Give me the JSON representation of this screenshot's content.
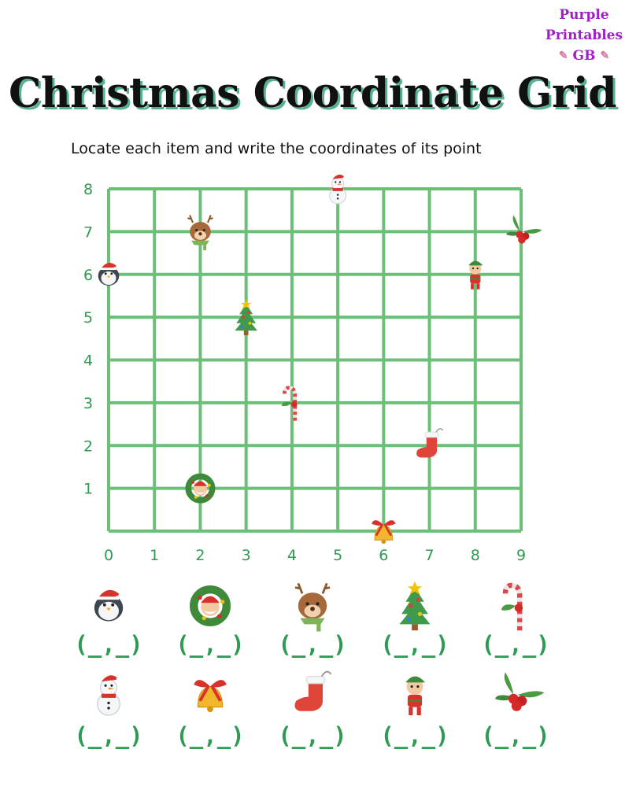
{
  "brand": {
    "line1": "Purple",
    "line2": "Printables",
    "line3": "GB"
  },
  "title": "Christmas Coordinate Grid",
  "subtitle": "Locate each item and write the coordinates of its point",
  "colors": {
    "grid": "#6cbf78",
    "axis_labels": "#2e9a52",
    "answer": "#2e9a52",
    "title_shadow": "#55b38f",
    "brand": "#a020c8"
  },
  "chart_data": {
    "type": "scatter",
    "x_ticks": [
      "0",
      "1",
      "2",
      "3",
      "4",
      "5",
      "6",
      "7",
      "8",
      "9"
    ],
    "y_ticks": [
      "1",
      "2",
      "3",
      "4",
      "5",
      "6",
      "7",
      "8"
    ],
    "xlim": [
      0,
      9
    ],
    "ylim": [
      0,
      8
    ],
    "grid": true,
    "points": [
      {
        "icon": "snowman-icon",
        "x": 5,
        "y": 8
      },
      {
        "icon": "reindeer-icon",
        "x": 2,
        "y": 7
      },
      {
        "icon": "holly-icon",
        "x": 9,
        "y": 7
      },
      {
        "icon": "penguin-icon",
        "x": 0,
        "y": 6
      },
      {
        "icon": "elf-icon",
        "x": 8,
        "y": 6
      },
      {
        "icon": "christmas-tree-icon",
        "x": 3,
        "y": 5
      },
      {
        "icon": "candy-cane-icon",
        "x": 4,
        "y": 3
      },
      {
        "icon": "stocking-icon",
        "x": 7,
        "y": 2
      },
      {
        "icon": "wreath-icon",
        "x": 2,
        "y": 1
      },
      {
        "icon": "bell-icon",
        "x": 6,
        "y": 0
      }
    ]
  },
  "answer_items": [
    {
      "icon": "penguin-icon",
      "blank": "(_,_)"
    },
    {
      "icon": "wreath-icon",
      "blank": "(_,_)"
    },
    {
      "icon": "reindeer-icon",
      "blank": "(_,_)"
    },
    {
      "icon": "christmas-tree-icon",
      "blank": "(_,_)"
    },
    {
      "icon": "candy-cane-icon",
      "blank": "(_,_)"
    },
    {
      "icon": "snowman-icon",
      "blank": "(_,_)"
    },
    {
      "icon": "bell-icon",
      "blank": "(_,_)"
    },
    {
      "icon": "stocking-icon",
      "blank": "(_,_)"
    },
    {
      "icon": "elf-icon",
      "blank": "(_,_)"
    },
    {
      "icon": "holly-icon",
      "blank": "(_,_)"
    }
  ]
}
